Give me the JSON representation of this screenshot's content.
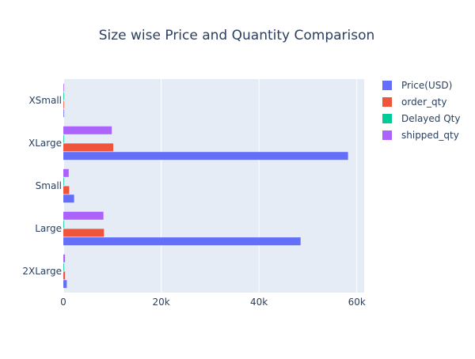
{
  "chart_data": {
    "type": "bar",
    "orientation": "horizontal",
    "barmode": "group",
    "title": "Size wise Price and Quantity Comparison",
    "xlabel": "",
    "ylabel": "",
    "xlim": [
      0,
      61500
    ],
    "x_ticks": [
      0,
      20000,
      40000,
      60000
    ],
    "x_tick_labels": [
      "0",
      "20k",
      "40k",
      "60k"
    ],
    "grid": "vertical",
    "legend_position": "top-right",
    "categories": [
      "2XLarge",
      "Large",
      "Small",
      "XLarge",
      "XSmall"
    ],
    "series": [
      {
        "name": "Price(USD)",
        "color": "#636efa",
        "values": [
          700,
          48500,
          2200,
          58200,
          60
        ]
      },
      {
        "name": "order_qty",
        "color": "#EF553B",
        "values": [
          350,
          8300,
          1200,
          10200,
          50
        ]
      },
      {
        "name": "Delayed Qty",
        "color": "#00cc96",
        "values": [
          10,
          80,
          15,
          90,
          2
        ]
      },
      {
        "name": "shipped_qty",
        "color": "#ab63fa",
        "values": [
          340,
          8200,
          1100,
          9900,
          40
        ]
      }
    ]
  }
}
